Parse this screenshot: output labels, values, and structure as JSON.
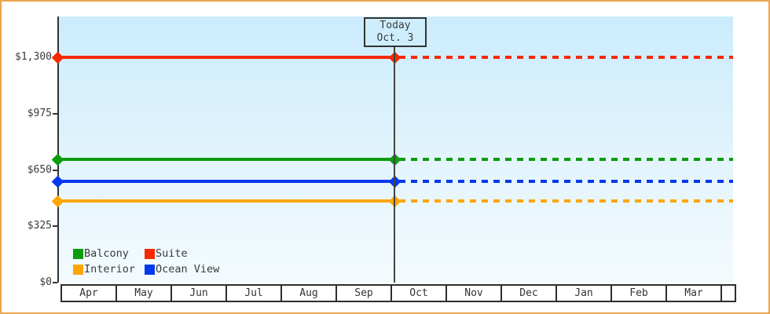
{
  "chart_data": {
    "type": "line",
    "title": "",
    "x_categories": [
      "Apr",
      "May",
      "Jun",
      "Jul",
      "Aug",
      "Sep",
      "Oct",
      "Nov",
      "Dec",
      "Jan",
      "Feb",
      "Mar"
    ],
    "y_axis": {
      "ylim": [
        0,
        1300
      ],
      "ticks": [
        {
          "value": 0,
          "label": "$0"
        },
        {
          "value": 325,
          "label": "$325"
        },
        {
          "value": 650,
          "label": "$650"
        },
        {
          "value": 975,
          "label": "$975"
        },
        {
          "value": 1300,
          "label": "$1,300"
        }
      ]
    },
    "series": [
      {
        "name": "Suite",
        "value": 1300,
        "color": "#f52a00"
      },
      {
        "name": "Balcony",
        "value": 710,
        "color": "#0c9c0c"
      },
      {
        "name": "Ocean View",
        "value": 585,
        "color": "#0338ee"
      },
      {
        "name": "Interior",
        "value": 470,
        "color": "#ffa600"
      }
    ],
    "legend": {
      "position": "bottom-left",
      "entries": [
        {
          "label": "Balcony",
          "color": "#0c9c0c"
        },
        {
          "label": "Suite",
          "color": "#f52a00"
        },
        {
          "label": "Interior",
          "color": "#ffa600"
        },
        {
          "label": "Ocean View",
          "color": "#0338ee"
        }
      ]
    },
    "annotation": {
      "line1": "Today",
      "line2": "Oct. 3",
      "month": "Oct",
      "day": 3
    },
    "line_style": {
      "solid_before_today": true,
      "dashed_after_today": true,
      "markers": "diamond at axis and at today line"
    }
  },
  "colors": {
    "outer_border": "#eaa651",
    "plot_bg_top": "#cbecfd",
    "plot_bg_bottom": "#f4fbfe",
    "axis": "#333333",
    "text": "#3a3a3a"
  }
}
